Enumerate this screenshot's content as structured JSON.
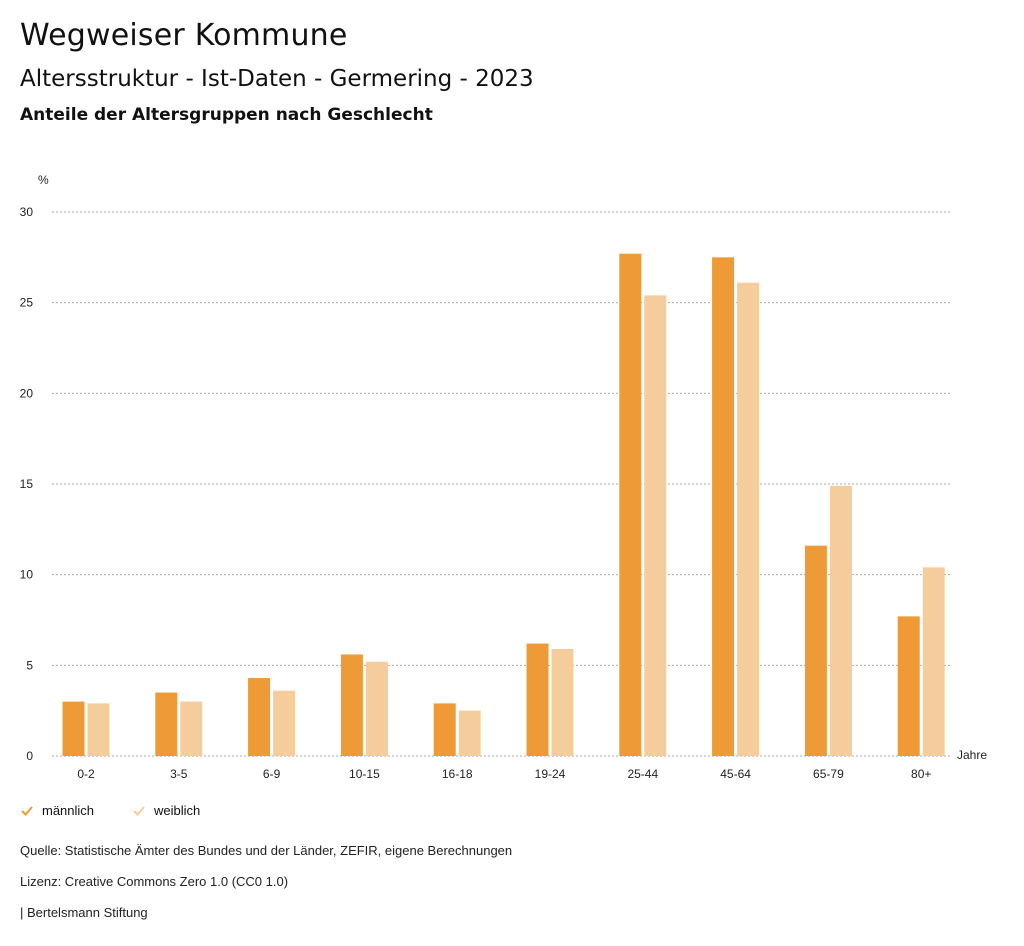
{
  "header": {
    "title": "Wegweiser Kommune",
    "subtitle": "Altersstruktur - Ist-Daten - Germering - 2023",
    "chart_heading": "Anteile der Altersgruppen nach Geschlecht"
  },
  "colors": {
    "maennlich": "#ee9a37",
    "weiblich": "#f5cc9c",
    "grid": "#aaaaaa"
  },
  "legend": {
    "items": [
      "männlich",
      "weiblich"
    ]
  },
  "footer": {
    "source": "Quelle: Statistische Ämter des Bundes und der Länder, ZEFIR, eigene Berechnungen",
    "license": "Lizenz: Creative Commons Zero 1.0 (CC0 1.0)",
    "brand": "| Bertelsmann Stiftung"
  },
  "chart_data": {
    "type": "bar",
    "categories": [
      "0-2",
      "3-5",
      "6-9",
      "10-15",
      "16-18",
      "19-24",
      "25-44",
      "45-64",
      "65-79",
      "80+"
    ],
    "series": [
      {
        "name": "männlich",
        "values": [
          3.0,
          3.5,
          4.3,
          5.6,
          2.9,
          6.2,
          27.7,
          27.5,
          11.6,
          7.7
        ]
      },
      {
        "name": "weiblich",
        "values": [
          2.9,
          3.0,
          3.6,
          5.2,
          2.5,
          5.9,
          25.4,
          26.1,
          14.9,
          10.4
        ]
      }
    ],
    "ylabel": "%",
    "xlabel": "Jahre",
    "yticks": [
      0,
      5,
      10,
      15,
      20,
      25,
      30
    ],
    "ylim": [
      0,
      30
    ],
    "grid": true,
    "legend_position": "bottom-left"
  }
}
